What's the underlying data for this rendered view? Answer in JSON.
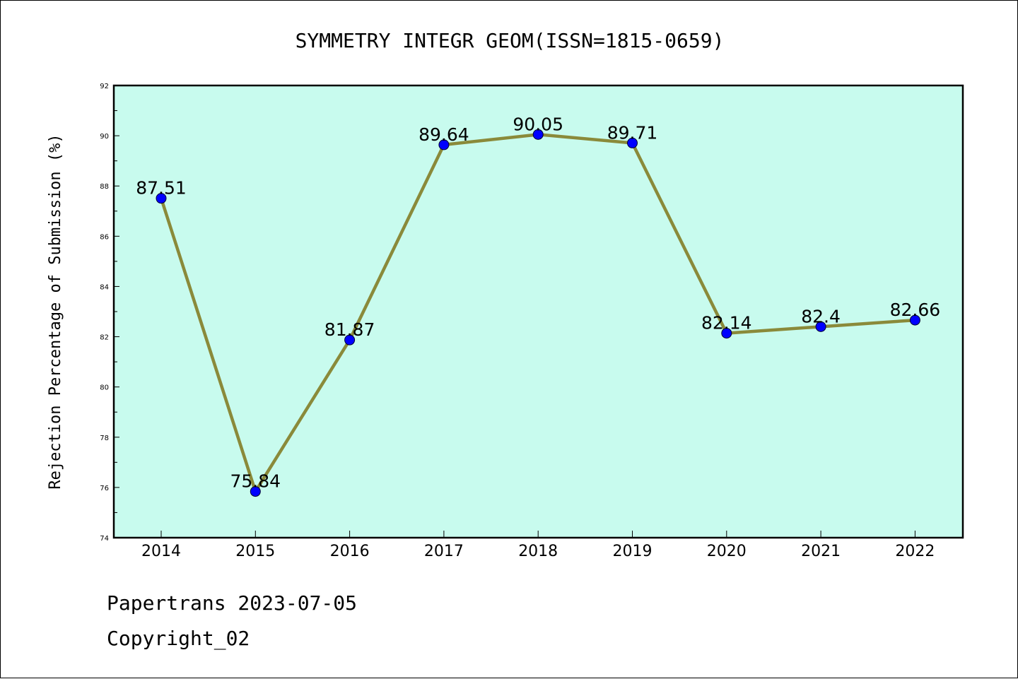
{
  "chart_data": {
    "type": "line",
    "title": "SYMMETRY INTEGR GEOM(ISSN=1815-0659)",
    "xlabel": "",
    "ylabel": "Rejection Percentage of Submission (%)",
    "categories": [
      "2014",
      "2015",
      "2016",
      "2017",
      "2018",
      "2019",
      "2020",
      "2021",
      "2022"
    ],
    "values": [
      87.51,
      75.84,
      81.87,
      89.64,
      90.05,
      89.71,
      82.14,
      82.4,
      82.66
    ],
    "data_labels": [
      "87.51",
      "75.84",
      "81.87",
      "89.64",
      "90.05",
      "89.71",
      "82.14",
      "82.4",
      "82.66"
    ],
    "ylim": [
      74,
      92
    ],
    "yticks": [
      "74",
      "76",
      "78",
      "80",
      "82",
      "84",
      "86",
      "88",
      "90",
      "92"
    ],
    "plot_background": "#c8fbee",
    "line_color": "#8a8a3a",
    "marker_color": "#0000ff",
    "grid": false
  },
  "footer": {
    "line1": "Papertrans 2023-07-05",
    "line2": "Copyright_02"
  }
}
